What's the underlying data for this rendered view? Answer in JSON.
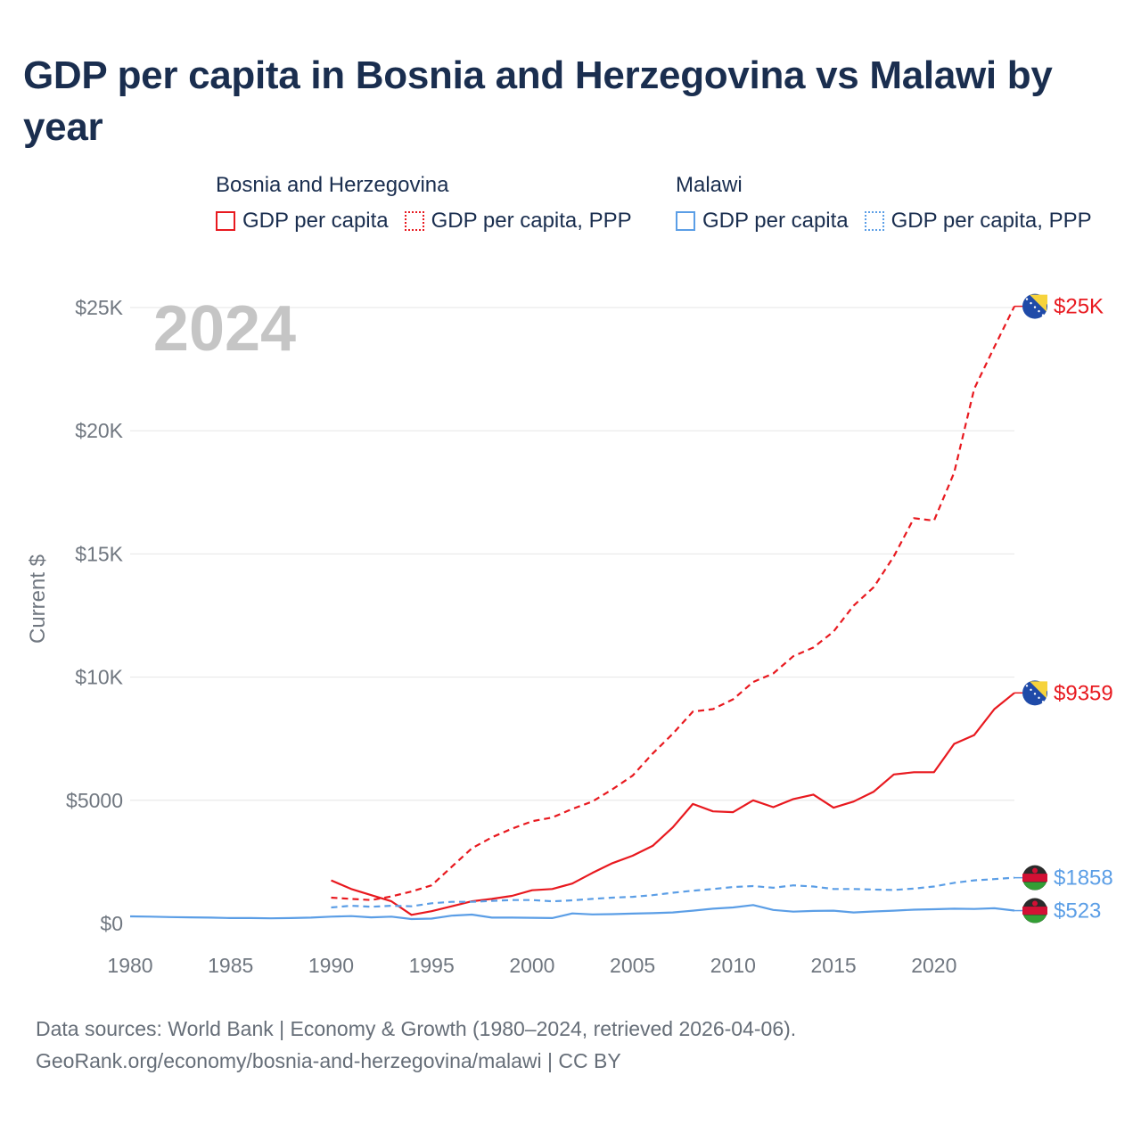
{
  "title": "GDP per capita in Bosnia and Herzegovina vs Malawi by year",
  "legend": {
    "groups": [
      {
        "name": "Bosnia and Herzegovina",
        "color": "#e8191f",
        "items": [
          {
            "label": "GDP per capita",
            "style": "solid"
          },
          {
            "label": "GDP per capita, PPP",
            "style": "dotted"
          }
        ]
      },
      {
        "name": "Malawi",
        "color": "#5b9ee6",
        "items": [
          {
            "label": "GDP per capita",
            "style": "solid"
          },
          {
            "label": "GDP per capita, PPP",
            "style": "dotted"
          }
        ]
      }
    ]
  },
  "footer": {
    "line1": "Data sources: World Bank | Economy & Growth (1980–2024, retrieved 2026-04-06).",
    "line2": "GeoRank.org/economy/bosnia-and-herzegovina/malawi | CC BY"
  },
  "chart_data": {
    "type": "line",
    "year_label": "2024",
    "ylabel": "Current $",
    "xlim": [
      1980,
      2024
    ],
    "ylim": [
      0,
      25000
    ],
    "x_ticks": [
      1980,
      1985,
      1990,
      1995,
      2000,
      2005,
      2010,
      2015,
      2020
    ],
    "y_ticks": [
      {
        "value": 0,
        "label": "$0"
      },
      {
        "value": 5000,
        "label": "$5000"
      },
      {
        "value": 10000,
        "label": "$10K"
      },
      {
        "value": 15000,
        "label": "$15K"
      },
      {
        "value": 20000,
        "label": "$20K"
      },
      {
        "value": 25000,
        "label": "$25K"
      }
    ],
    "grid": true,
    "series": [
      {
        "name": "Bosnia and Herzegovina GDP per capita, PPP",
        "country": "Bosnia and Herzegovina",
        "color": "#e8191f",
        "dashed": true,
        "end_label": "$25K",
        "flag": "bosnia-flag-icon",
        "x": [
          1990,
          1991,
          1992,
          1993,
          1994,
          1995,
          1996,
          1997,
          1998,
          1999,
          2000,
          2001,
          2002,
          2003,
          2004,
          2005,
          2006,
          2007,
          2008,
          2009,
          2010,
          2011,
          2012,
          2013,
          2014,
          2015,
          2016,
          2017,
          2018,
          2019,
          2020,
          2021,
          2022,
          2023,
          2024
        ],
        "values": [
          1050,
          1000,
          950,
          1100,
          1300,
          1550,
          2300,
          3050,
          3500,
          3850,
          4150,
          4300,
          4650,
          4950,
          5450,
          6000,
          6900,
          7700,
          8600,
          8700,
          9100,
          9800,
          10150,
          10850,
          11200,
          11850,
          12900,
          13650,
          14900,
          16450,
          16350,
          18300,
          21700,
          23400,
          25050
        ]
      },
      {
        "name": "Bosnia and Herzegovina GDP per capita",
        "country": "Bosnia and Herzegovina",
        "color": "#e8191f",
        "dashed": false,
        "end_label": "$9359",
        "flag": "bosnia-flag-icon",
        "x": [
          1990,
          1991,
          1992,
          1993,
          1994,
          1995,
          1996,
          1997,
          1998,
          1999,
          2000,
          2001,
          2002,
          2003,
          2004,
          2005,
          2006,
          2007,
          2008,
          2009,
          2010,
          2011,
          2012,
          2013,
          2014,
          2015,
          2016,
          2017,
          2018,
          2019,
          2020,
          2021,
          2022,
          2023,
          2024
        ],
        "values": [
          1750,
          1400,
          1150,
          900,
          350,
          500,
          700,
          900,
          1000,
          1120,
          1350,
          1400,
          1620,
          2050,
          2450,
          2750,
          3150,
          3900,
          4850,
          4550,
          4520,
          5000,
          4720,
          5050,
          5230,
          4700,
          4950,
          5350,
          6050,
          6140,
          6140,
          7290,
          7650,
          8700,
          9359
        ]
      },
      {
        "name": "Malawi GDP per capita, PPP",
        "country": "Malawi",
        "color": "#5b9ee6",
        "dashed": true,
        "end_label": "$1858",
        "flag": "malawi-flag-icon",
        "x": [
          1990,
          1991,
          1992,
          1993,
          1994,
          1995,
          1996,
          1997,
          1998,
          1999,
          2000,
          2001,
          2002,
          2003,
          2004,
          2005,
          2006,
          2007,
          2008,
          2009,
          2010,
          2011,
          2012,
          2013,
          2014,
          2015,
          2016,
          2017,
          2018,
          2019,
          2020,
          2021,
          2022,
          2023,
          2024
        ],
        "values": [
          650,
          720,
          680,
          720,
          700,
          820,
          880,
          880,
          920,
          950,
          950,
          900,
          940,
          1000,
          1050,
          1080,
          1150,
          1250,
          1330,
          1400,
          1480,
          1520,
          1450,
          1550,
          1500,
          1400,
          1400,
          1380,
          1360,
          1420,
          1500,
          1650,
          1750,
          1800,
          1858
        ]
      },
      {
        "name": "Malawi GDP per capita",
        "country": "Malawi",
        "color": "#5b9ee6",
        "dashed": false,
        "end_label": "$523",
        "flag": "malawi-flag-icon",
        "x": [
          1980,
          1981,
          1982,
          1983,
          1984,
          1985,
          1986,
          1987,
          1988,
          1989,
          1990,
          1991,
          1992,
          1993,
          1994,
          1995,
          1996,
          1997,
          1998,
          1999,
          2000,
          2001,
          2002,
          2003,
          2004,
          2005,
          2006,
          2007,
          2008,
          2009,
          2010,
          2011,
          2012,
          2013,
          2014,
          2015,
          2016,
          2017,
          2018,
          2019,
          2020,
          2021,
          2022,
          2023,
          2024
        ],
        "values": [
          290,
          280,
          260,
          250,
          240,
          220,
          220,
          210,
          220,
          240,
          280,
          300,
          250,
          280,
          180,
          200,
          320,
          360,
          240,
          240,
          230,
          220,
          410,
          370,
          380,
          400,
          420,
          450,
          520,
          600,
          650,
          750,
          550,
          480,
          510,
          520,
          450,
          490,
          520,
          560,
          580,
          600,
          590,
          620,
          523
        ]
      }
    ]
  }
}
